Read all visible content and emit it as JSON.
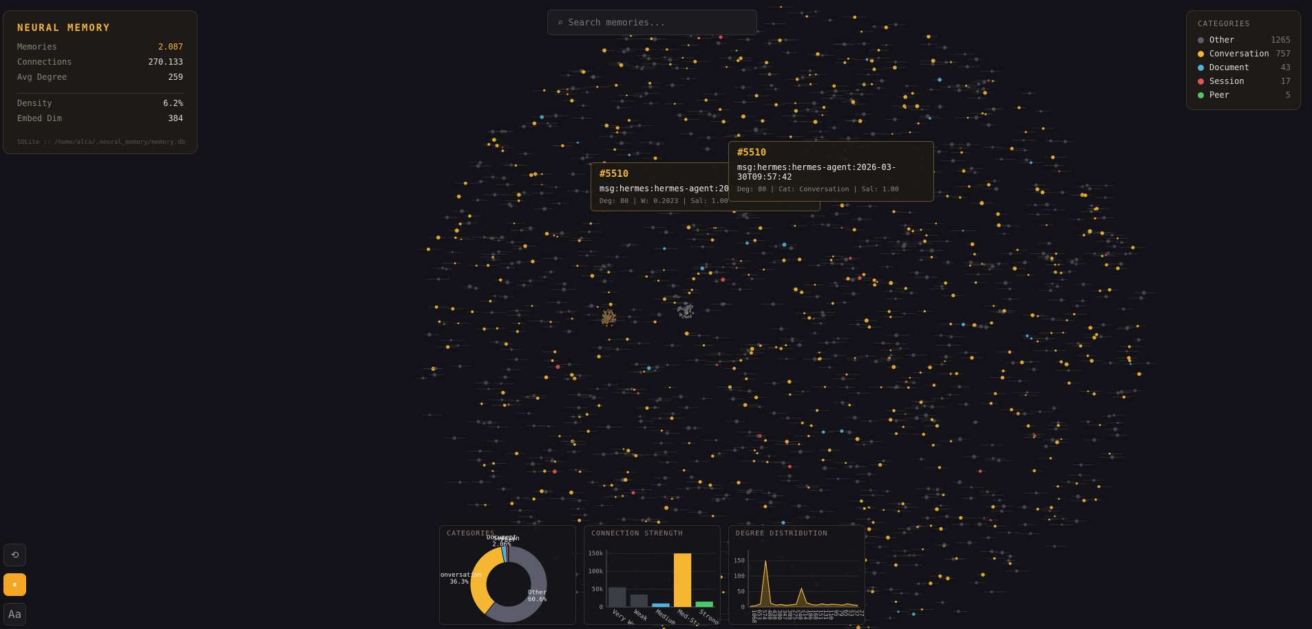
{
  "header": {
    "title": "NEURAL MEMORY"
  },
  "stats": [
    {
      "label": "Memories",
      "value": "2.087"
    },
    {
      "label": "Connections",
      "value": "270.133"
    },
    {
      "label": "Avg Degree",
      "value": "259"
    },
    {
      "label": "Density",
      "value": "6.2%"
    },
    {
      "label": "Embed Dim",
      "value": "384"
    }
  ],
  "db_path": "SQLite :: /home/alca/.neural_memory/memory.db",
  "search_placeholder": "⌕ Search memories...",
  "legend": {
    "title": "CATEGORIES",
    "items": [
      {
        "name": "Other",
        "color": "#5c5c6a",
        "count": 1265
      },
      {
        "name": "Conversation",
        "color": "#f5b731",
        "count": 757
      },
      {
        "name": "Document",
        "color": "#4fb3d9",
        "count": 43
      },
      {
        "name": "Session",
        "color": "#e05555",
        "count": 17
      },
      {
        "name": "Peer",
        "color": "#4cc96a",
        "count": 5
      }
    ]
  },
  "tooltips": [
    {
      "id": "#5510",
      "text": "msg:hermes:hermes-agent:2026-03-30T09:57:42",
      "meta": "Deg: 80 | W: 0.2023 | Sal: 1.00"
    },
    {
      "id": "#5510",
      "text": "msg:hermes:hermes-agent:2026-03-30T09:57:42",
      "meta": "Deg: 80 | Cat: Conversation | Sal: 1.00"
    }
  ],
  "controls": [
    "⟲",
    "⏸",
    "Aa"
  ],
  "chart_data": [
    {
      "type": "pie",
      "title": "CATEGORIES",
      "categories": [
        "Other",
        "Conversation",
        "Document",
        "Session",
        "Peer"
      ],
      "values": [
        60.6,
        36.3,
        2.06,
        0.81,
        0.24
      ],
      "value_labels": [
        "60.6%",
        "36.3%",
        "2.06%",
        null,
        null
      ],
      "colors": [
        "#5c5c6a",
        "#f5b731",
        "#4fb3d9",
        "#e05555",
        "#4cc96a"
      ]
    },
    {
      "type": "bar",
      "title": "CONNECTION STRENGTH",
      "categories": [
        "Very Weak",
        "Weak",
        "Medium",
        "Med-Strong",
        "Strong"
      ],
      "values": [
        55000,
        35000,
        10000,
        150000,
        15000
      ],
      "colors": [
        "#3c3c46",
        "#3c3c46",
        "#4fb3d9",
        "#f5b731",
        "#4cc96a"
      ],
      "ylim": [
        0,
        160000
      ],
      "yticks": [
        0,
        {
          "value": 50000,
          "label": "50k"
        },
        {
          "value": 100000,
          "label": "100k"
        },
        {
          "value": 150000,
          "label": "150k"
        }
      ],
      "grid": true
    },
    {
      "type": "line",
      "title": "DEGREE DISTRIBUTION",
      "categories": [
        "1068",
        "653",
        "574",
        "488",
        "438",
        "380",
        "347",
        "309",
        "275",
        "240",
        "214",
        "186",
        "168",
        "151",
        "131",
        "110",
        "95",
        "79",
        "65",
        "53",
        "37",
        "27"
      ],
      "values": [
        2,
        4,
        10,
        150,
        12,
        6,
        8,
        5,
        7,
        9,
        60,
        14,
        8,
        6,
        10,
        7,
        9,
        8,
        6,
        10,
        7,
        5
      ],
      "color": "#f5b731",
      "ylim": [
        0,
        185
      ],
      "yticks": [
        0,
        50,
        100,
        150
      ],
      "grid": true
    }
  ]
}
